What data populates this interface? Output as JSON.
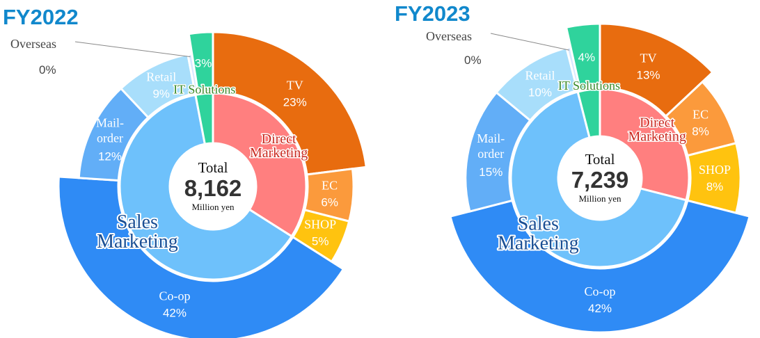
{
  "colors": {
    "title": "#1188cc",
    "outer_edge": "#ffffff"
  },
  "chart_data": [
    {
      "type": "donut",
      "title": "FY2022",
      "total_label": "Total",
      "total_value": "8,162",
      "total_unit": "Million yen",
      "inner_ring": [
        {
          "name": "Direct Marketing",
          "lines": [
            "Direct",
            "Marketing"
          ],
          "value": 34,
          "color": "#ff7f7f",
          "text_color": "#c8281e",
          "outline": "#ffffff"
        },
        {
          "name": "Sales Marketing",
          "lines": [
            "Sales",
            "Marketing"
          ],
          "value": 63,
          "color": "#6ec1fb",
          "text_color": "#1a4f94",
          "outline": "#ffffff"
        },
        {
          "name": "IT Solutions",
          "lines": [
            "IT Solutions"
          ],
          "value": 3,
          "color": "#2fd39c",
          "text_color": "#3a8a2a",
          "outline": "#ffffff"
        }
      ],
      "outer_ring": [
        {
          "name": "TV",
          "percent": "23%",
          "value": 23,
          "color": "#e86c0f",
          "text_color": "#ffffff"
        },
        {
          "name": "EC",
          "percent": "6%",
          "value": 6,
          "color": "#fb9a3c",
          "text_color": "#ffffff"
        },
        {
          "name": "SHOP",
          "percent": "5%",
          "value": 5,
          "color": "#ffc30f",
          "text_color": "#ffffff"
        },
        {
          "name": "Co-op",
          "percent": "42%",
          "value": 42,
          "color": "#2f8bf5",
          "text_color": "#ffffff"
        },
        {
          "name": "Mail-order",
          "percent": "12%",
          "value": 12,
          "color": "#62aef7",
          "text_color": "#ffffff"
        },
        {
          "name": "Retail",
          "percent": "9%",
          "value": 9,
          "color": "#a8defb",
          "text_color": "#ffffff"
        },
        {
          "name": "Overseas",
          "percent": "0%",
          "value": 0.5,
          "color": "#d7e8ff",
          "text_color": "#444444"
        },
        {
          "name": "IT Solutions",
          "percent": "3%",
          "value": 2.5,
          "color": "#2fd39c",
          "text_color": "#ffffff"
        }
      ]
    },
    {
      "type": "donut",
      "title": "FY2023",
      "total_label": "Total",
      "total_value": "7,239",
      "total_unit": "Million yen",
      "inner_ring": [
        {
          "name": "Direct Marketing",
          "lines": [
            "Direct",
            "Marketing"
          ],
          "value": 29,
          "color": "#ff7f7f",
          "text_color": "#c8281e",
          "outline": "#ffffff"
        },
        {
          "name": "Sales Marketing",
          "lines": [
            "Sales",
            "Marketing"
          ],
          "value": 67,
          "color": "#6ec1fb",
          "text_color": "#1a4f94",
          "outline": "#ffffff"
        },
        {
          "name": "IT Solutions",
          "lines": [
            "IT Solutions"
          ],
          "value": 4,
          "color": "#2fd39c",
          "text_color": "#3a8a2a",
          "outline": "#ffffff"
        }
      ],
      "outer_ring": [
        {
          "name": "TV",
          "percent": "13%",
          "value": 13,
          "color": "#e86c0f",
          "text_color": "#ffffff"
        },
        {
          "name": "EC",
          "percent": "8%",
          "value": 8,
          "color": "#fb9a3c",
          "text_color": "#ffffff"
        },
        {
          "name": "SHOP",
          "percent": "8%",
          "value": 8,
          "color": "#ffc30f",
          "text_color": "#ffffff"
        },
        {
          "name": "Co-op",
          "percent": "42%",
          "value": 42,
          "color": "#2f8bf5",
          "text_color": "#ffffff"
        },
        {
          "name": "Mail-order",
          "percent": "15%",
          "value": 15,
          "color": "#62aef7",
          "text_color": "#ffffff"
        },
        {
          "name": "Retail",
          "percent": "10%",
          "value": 10,
          "color": "#a8defb",
          "text_color": "#ffffff"
        },
        {
          "name": "Overseas",
          "percent": "0%",
          "value": 0.5,
          "color": "#d7e8ff",
          "text_color": "#444444"
        },
        {
          "name": "IT Solutions",
          "percent": "4%",
          "value": 3.5,
          "color": "#2fd39c",
          "text_color": "#ffffff"
        }
      ]
    }
  ]
}
